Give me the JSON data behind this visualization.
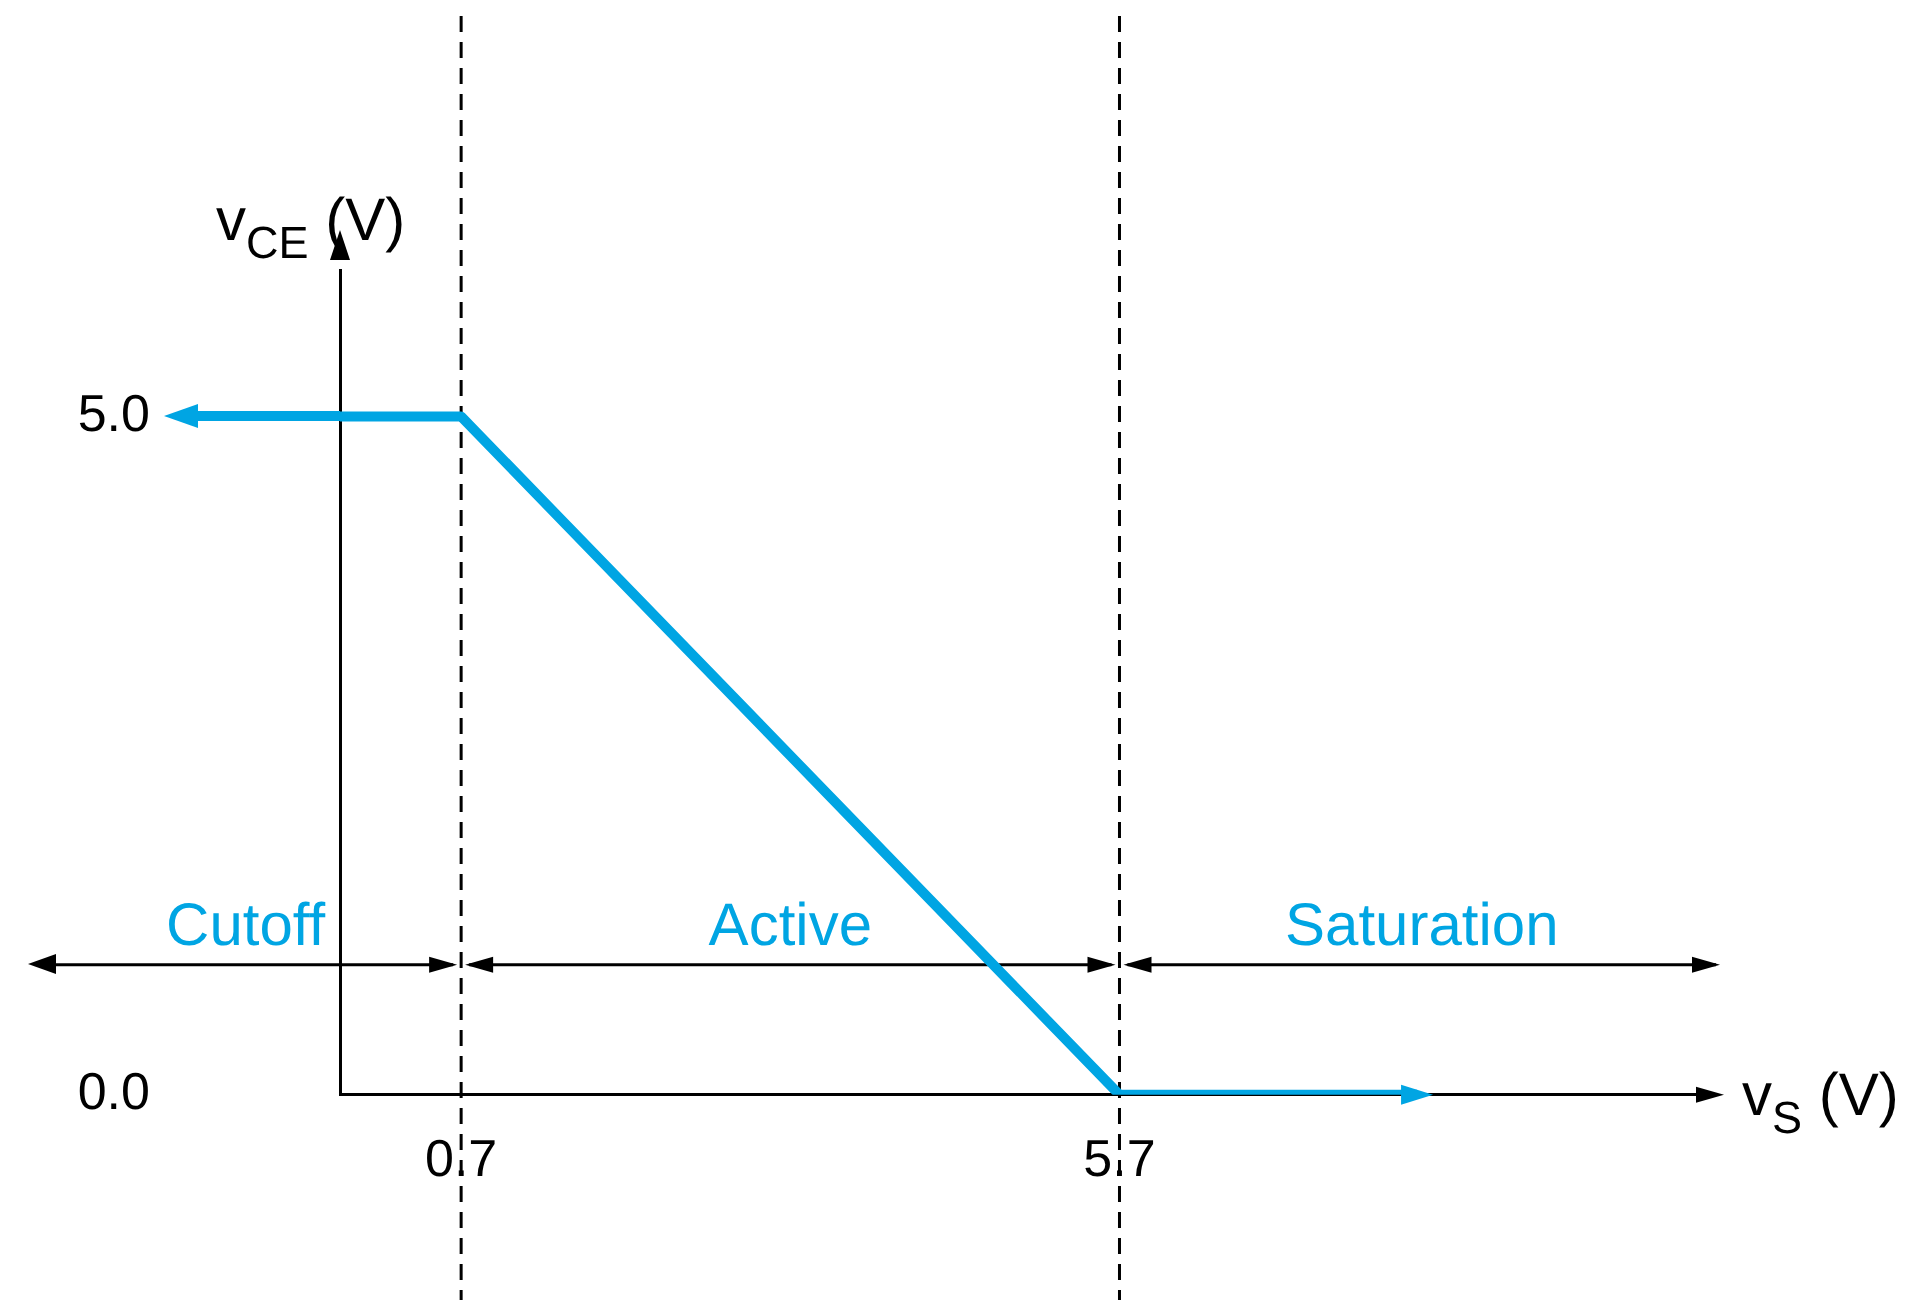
{
  "chart_data": {
    "type": "line",
    "xlabel": "v$_{S}$ (V)",
    "ylabel": "v$_{CE}$ (V)",
    "x": [
      -0.22,
      0.7,
      5.7,
      7.96
    ],
    "series": [
      {
        "color": "#00a5e3",
        "values": [
          5.0,
          5.0,
          0.0,
          0.0
        ]
      }
    ],
    "xlim": [
      -0.22,
      10.2
    ],
    "ylim": [
      0,
      6.08
    ],
    "xticks": [
      0.7,
      5.7
    ],
    "yticks": [
      {
        "value": 0,
        "label": "0.0"
      },
      {
        "value": 5,
        "label": "5.0"
      }
    ],
    "line_style": "solid",
    "ref_lines": [
      {
        "axis": "x",
        "value": 0.7,
        "line_style": "dashed",
        "color": "#000000"
      },
      {
        "axis": "x",
        "value": 5.7,
        "line_style": "dashed",
        "color": "#000000"
      }
    ],
    "annotations": [
      "Cutoff",
      "Active",
      "Saturation"
    ]
  }
}
